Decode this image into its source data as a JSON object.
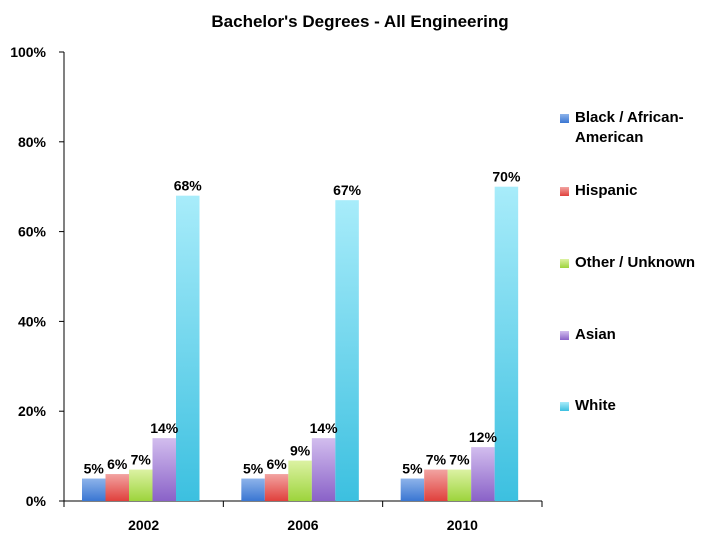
{
  "chart_data": {
    "type": "bar",
    "title": "Bachelor's Degrees - All Engineering",
    "categories": [
      "2002",
      "2006",
      "2010"
    ],
    "series": [
      {
        "name": "Black / African-American",
        "values": [
          5,
          5,
          5
        ],
        "labels": [
          "5%",
          "5%",
          "5%"
        ],
        "color_top": "#8db3ea",
        "color_bottom": "#3a76d2"
      },
      {
        "name": "Hispanic",
        "values": [
          6,
          6,
          7
        ],
        "labels": [
          "6%",
          "6%",
          "7%"
        ],
        "color_top": "#f2a3a1",
        "color_bottom": "#e0403c"
      },
      {
        "name": "Other / Unknown",
        "values": [
          7,
          9,
          7
        ],
        "labels": [
          "7%",
          "9%",
          "7%"
        ],
        "color_top": "#dcf2a3",
        "color_bottom": "#9dd43c"
      },
      {
        "name": "Asian",
        "values": [
          14,
          14,
          12
        ],
        "labels": [
          "14%",
          "14%",
          "12%"
        ],
        "color_top": "#d2bdee",
        "color_bottom": "#8a62c8"
      },
      {
        "name": "White",
        "values": [
          68,
          67,
          70
        ],
        "labels": [
          "68%",
          "67%",
          "70%"
        ],
        "color_top": "#a8ecfa",
        "color_bottom": "#3cc0e0"
      }
    ],
    "ylim": [
      0,
      100
    ],
    "yticks": [
      "0%",
      "20%",
      "40%",
      "60%",
      "80%",
      "100%"
    ],
    "grid": false,
    "legend_position": "right"
  }
}
